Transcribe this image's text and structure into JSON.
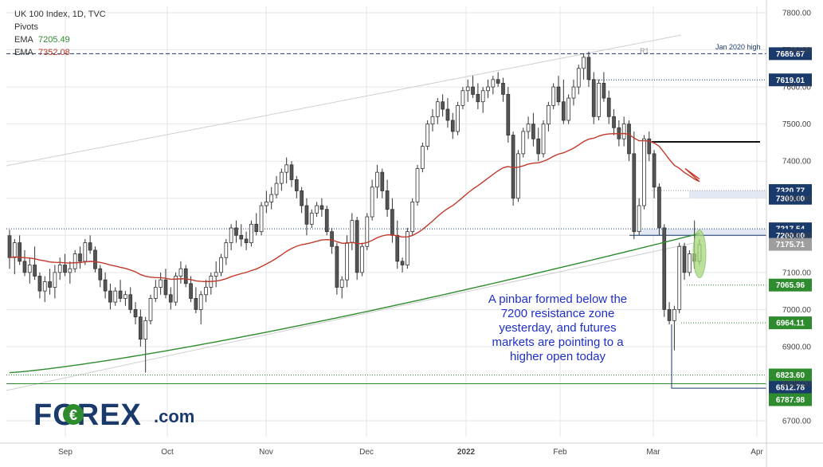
{
  "header": {
    "title": "UK 100 Index, 1D, TVC",
    "pivots": "Pivots",
    "ema1_label": "EMA",
    "ema1_value": "7205.49",
    "ema2_label": "EMA",
    "ema2_value": "7352.08"
  },
  "logo": {
    "text": "FOREX",
    "suffix": ".com"
  },
  "annotation": "A pinbar formed below the 7200 resistance zone yesterday, and futures markets are pointing to a higher open today",
  "chart_data": {
    "type": "candlestick",
    "title": "UK 100 Index, 1D, TVC",
    "ylim": [
      6650,
      7850
    ],
    "y_ticks": [
      6700,
      6800,
      6900,
      7000,
      7100,
      7200,
      7300,
      7400,
      7500,
      7600,
      7700,
      7800
    ],
    "y_tick_labels": [
      "6700.00",
      "6800.00",
      "6900.00",
      "7000.00",
      "7100.00",
      "7200.00",
      "7300.00",
      "7400.00",
      "7500.00",
      "7600.00",
      "7700.00",
      "7800.00"
    ],
    "x_labels": [
      "Sep",
      "Oct",
      "Nov",
      "Dec",
      "2022",
      "Feb",
      "Mar",
      "Apr"
    ],
    "candles": [
      [
        7199,
        7215,
        7110,
        7140
      ],
      [
        7140,
        7190,
        7095,
        7180
      ],
      [
        7180,
        7200,
        7120,
        7130
      ],
      [
        7130,
        7160,
        7090,
        7100
      ],
      [
        7100,
        7140,
        7070,
        7120
      ],
      [
        7120,
        7170,
        7080,
        7090
      ],
      [
        7090,
        7100,
        7030,
        7050
      ],
      [
        7050,
        7090,
        7020,
        7075
      ],
      [
        7075,
        7110,
        7040,
        7060
      ],
      [
        7060,
        7120,
        7030,
        7100
      ],
      [
        7100,
        7140,
        7080,
        7120
      ],
      [
        7120,
        7150,
        7090,
        7100
      ],
      [
        7100,
        7130,
        7070,
        7110
      ],
      [
        7110,
        7160,
        7100,
        7150
      ],
      [
        7150,
        7170,
        7110,
        7130
      ],
      [
        7130,
        7190,
        7120,
        7180
      ],
      [
        7180,
        7200,
        7150,
        7160
      ],
      [
        7160,
        7170,
        7100,
        7110
      ],
      [
        7110,
        7120,
        7060,
        7080
      ],
      [
        7080,
        7100,
        7030,
        7050
      ],
      [
        7050,
        7070,
        7000,
        7020
      ],
      [
        7020,
        7060,
        7010,
        7050
      ],
      [
        7050,
        7080,
        7020,
        7030
      ],
      [
        7030,
        7050,
        7010,
        7040
      ],
      [
        7040,
        7060,
        6990,
        7000
      ],
      [
        7000,
        7020,
        6960,
        6980
      ],
      [
        6980,
        7000,
        6900,
        6920
      ],
      [
        6920,
        6980,
        6830,
        6970
      ],
      [
        6970,
        7040,
        6960,
        7030
      ],
      [
        7030,
        7080,
        7020,
        7060
      ],
      [
        7060,
        7100,
        7040,
        7080
      ],
      [
        7080,
        7110,
        7030,
        7040
      ],
      [
        7040,
        7060,
        7000,
        7020
      ],
      [
        7020,
        7100,
        7010,
        7090
      ],
      [
        7090,
        7130,
        7070,
        7110
      ],
      [
        7110,
        7120,
        7060,
        7070
      ],
      [
        7070,
        7090,
        7020,
        7030
      ],
      [
        7030,
        7060,
        6990,
        7000
      ],
      [
        7000,
        7050,
        6960,
        7040
      ],
      [
        7040,
        7080,
        7020,
        7060
      ],
      [
        7060,
        7100,
        7040,
        7090
      ],
      [
        7090,
        7130,
        7060,
        7100
      ],
      [
        7100,
        7150,
        7090,
        7140
      ],
      [
        7140,
        7190,
        7120,
        7180
      ],
      [
        7180,
        7230,
        7160,
        7220
      ],
      [
        7220,
        7240,
        7180,
        7200
      ],
      [
        7200,
        7230,
        7170,
        7190
      ],
      [
        7190,
        7210,
        7160,
        7180
      ],
      [
        7180,
        7240,
        7170,
        7230
      ],
      [
        7230,
        7260,
        7200,
        7210
      ],
      [
        7210,
        7290,
        7200,
        7280
      ],
      [
        7280,
        7320,
        7260,
        7290
      ],
      [
        7290,
        7330,
        7270,
        7310
      ],
      [
        7310,
        7360,
        7300,
        7340
      ],
      [
        7340,
        7380,
        7320,
        7370
      ],
      [
        7370,
        7410,
        7340,
        7390
      ],
      [
        7390,
        7400,
        7330,
        7350
      ],
      [
        7350,
        7360,
        7300,
        7320
      ],
      [
        7320,
        7330,
        7260,
        7280
      ],
      [
        7280,
        7300,
        7200,
        7230
      ],
      [
        7230,
        7270,
        7220,
        7260
      ],
      [
        7260,
        7290,
        7250,
        7280
      ],
      [
        7280,
        7300,
        7250,
        7270
      ],
      [
        7270,
        7280,
        7200,
        7210
      ],
      [
        7210,
        7220,
        7150,
        7170
      ],
      [
        7170,
        7180,
        7040,
        7060
      ],
      [
        7060,
        7090,
        7030,
        7080
      ],
      [
        7080,
        7200,
        7060,
        7180
      ],
      [
        7180,
        7260,
        7160,
        7240
      ],
      [
        7240,
        7250,
        7080,
        7100
      ],
      [
        7100,
        7180,
        7090,
        7170
      ],
      [
        7170,
        7260,
        7160,
        7250
      ],
      [
        7250,
        7350,
        7240,
        7330
      ],
      [
        7330,
        7390,
        7300,
        7370
      ],
      [
        7370,
        7380,
        7300,
        7320
      ],
      [
        7320,
        7350,
        7250,
        7270
      ],
      [
        7270,
        7300,
        7180,
        7200
      ],
      [
        7200,
        7240,
        7110,
        7130
      ],
      [
        7130,
        7140,
        7100,
        7120
      ],
      [
        7120,
        7220,
        7110,
        7210
      ],
      [
        7210,
        7300,
        7200,
        7290
      ],
      [
        7290,
        7390,
        7280,
        7380
      ],
      [
        7380,
        7450,
        7370,
        7440
      ],
      [
        7440,
        7510,
        7430,
        7500
      ],
      [
        7500,
        7540,
        7480,
        7520
      ],
      [
        7520,
        7570,
        7500,
        7560
      ],
      [
        7560,
        7580,
        7520,
        7540
      ],
      [
        7540,
        7570,
        7490,
        7510
      ],
      [
        7510,
        7530,
        7460,
        7480
      ],
      [
        7480,
        7560,
        7470,
        7550
      ],
      [
        7550,
        7600,
        7540,
        7590
      ],
      [
        7590,
        7620,
        7560,
        7600
      ],
      [
        7600,
        7630,
        7570,
        7580
      ],
      [
        7580,
        7610,
        7540,
        7560
      ],
      [
        7560,
        7600,
        7530,
        7590
      ],
      [
        7590,
        7620,
        7570,
        7600
      ],
      [
        7600,
        7630,
        7580,
        7620
      ],
      [
        7620,
        7640,
        7600,
        7610
      ],
      [
        7610,
        7625,
        7560,
        7580
      ],
      [
        7580,
        7600,
        7450,
        7470
      ],
      [
        7470,
        7480,
        7280,
        7300
      ],
      [
        7300,
        7430,
        7290,
        7420
      ],
      [
        7420,
        7490,
        7410,
        7480
      ],
      [
        7480,
        7520,
        7460,
        7500
      ],
      [
        7500,
        7530,
        7440,
        7460
      ],
      [
        7460,
        7490,
        7400,
        7420
      ],
      [
        7420,
        7510,
        7410,
        7500
      ],
      [
        7500,
        7560,
        7480,
        7550
      ],
      [
        7550,
        7610,
        7540,
        7600
      ],
      [
        7600,
        7630,
        7550,
        7560
      ],
      [
        7560,
        7620,
        7500,
        7510
      ],
      [
        7510,
        7580,
        7500,
        7570
      ],
      [
        7570,
        7620,
        7550,
        7600
      ],
      [
        7600,
        7660,
        7580,
        7650
      ],
      [
        7650,
        7690,
        7620,
        7680
      ],
      [
        7680,
        7695,
        7600,
        7620
      ],
      [
        7620,
        7640,
        7500,
        7520
      ],
      [
        7520,
        7620,
        7510,
        7610
      ],
      [
        7610,
        7640,
        7560,
        7570
      ],
      [
        7570,
        7590,
        7500,
        7520
      ],
      [
        7520,
        7540,
        7470,
        7490
      ],
      [
        7490,
        7510,
        7440,
        7460
      ],
      [
        7460,
        7520,
        7440,
        7500
      ],
      [
        7500,
        7510,
        7400,
        7420
      ],
      [
        7420,
        7480,
        7190,
        7210
      ],
      [
        7210,
        7300,
        7200,
        7280
      ],
      [
        7280,
        7470,
        7270,
        7460
      ],
      [
        7460,
        7480,
        7400,
        7420
      ],
      [
        7420,
        7430,
        7300,
        7330
      ],
      [
        7330,
        7340,
        7200,
        7220
      ],
      [
        7220,
        7230,
        6980,
        7000
      ],
      [
        7000,
        7020,
        6960,
        6970
      ],
      [
        6970,
        7010,
        6890,
        7000
      ],
      [
        7000,
        7180,
        6990,
        7170
      ],
      [
        7170,
        7180,
        7080,
        7100
      ],
      [
        7100,
        7160,
        7090,
        7150
      ],
      [
        7150,
        7240,
        7110,
        7130
      ],
      [
        7130,
        7190,
        7120,
        7175
      ]
    ],
    "series": [
      {
        "name": "EMA",
        "value": 7205.49,
        "color": "#2e8b2e"
      },
      {
        "name": "EMA",
        "value": 7352.08,
        "color": "#c0392b"
      }
    ],
    "levels": [
      {
        "label": "7689.67",
        "color": "#1a3a6b"
      },
      {
        "label": "7619.01",
        "color": "#1a3a6b"
      },
      {
        "label": "7320.77",
        "color": "#1a3a6b"
      },
      {
        "label": "7300.00",
        "color": "#1a3a6b"
      },
      {
        "label": "7217.54",
        "color": "#1a3a6b"
      },
      {
        "label": "7200.00",
        "color": "#1a3a6b"
      },
      {
        "label": "7175.71",
        "color": "#9e9e9e"
      },
      {
        "label": "7065.96",
        "color": "#2e8b2e"
      },
      {
        "label": "6964.11",
        "color": "#2e8b2e"
      },
      {
        "label": "6823.60",
        "color": "#2e8b2e"
      },
      {
        "label": "6812.78",
        "color": "#1a3a6b"
      },
      {
        "label": "6787.98",
        "color": "#2e8b2e"
      }
    ],
    "annotations": [
      "Jan 2020 high",
      "R1"
    ],
    "colors": {
      "bull": "#ffffff",
      "bear": "#555555",
      "grid": "#e6e6e6",
      "ema_fast": "#2e8b2e",
      "ema_slow": "#c0392b",
      "logo": "#1a3a6b",
      "accent": "#2e8b2e",
      "text": "#1f2fc9"
    }
  }
}
